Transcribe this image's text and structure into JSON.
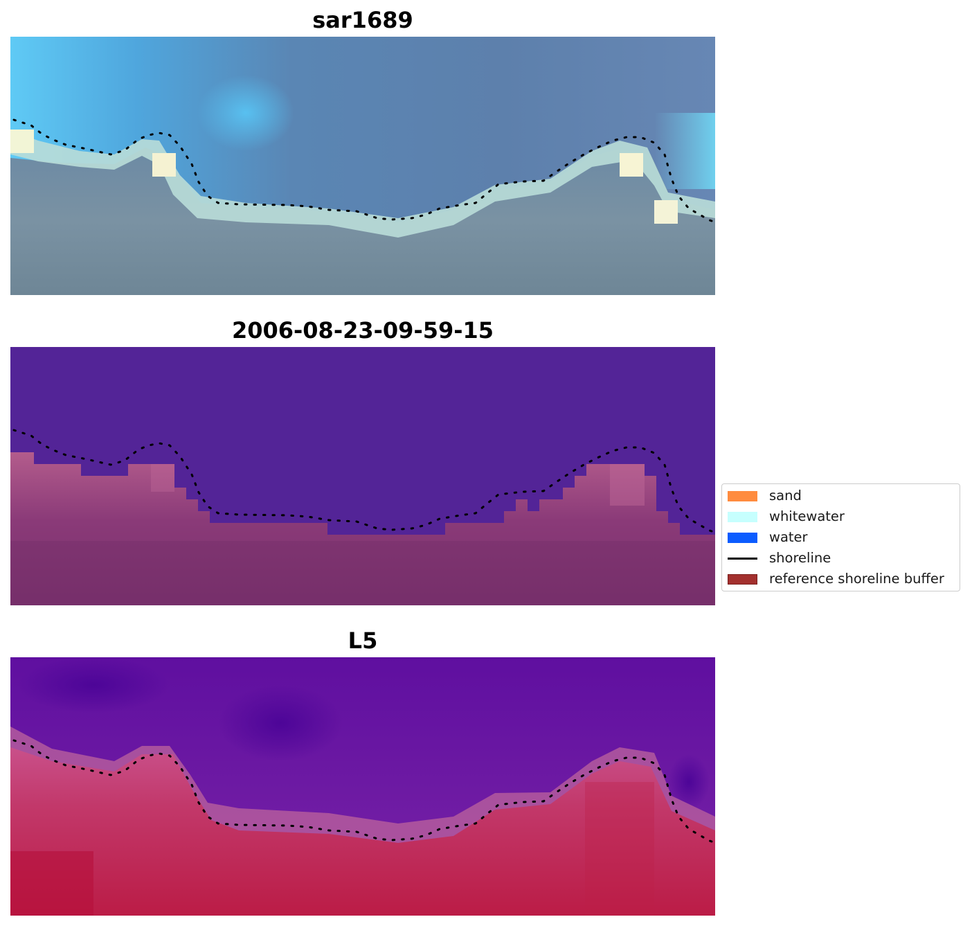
{
  "panels": [
    {
      "title": "sar1689",
      "kind": "rgb"
    },
    {
      "title": "2006-08-23-09-59-15",
      "kind": "classified"
    },
    {
      "title": "L5",
      "kind": "index"
    }
  ],
  "legend": {
    "placement": "right-middle",
    "items": [
      {
        "label": "sand",
        "type": "patch",
        "color": "#ff8c3f"
      },
      {
        "label": "whitewater",
        "type": "patch",
        "color": "#c6fffe"
      },
      {
        "label": "water",
        "type": "patch",
        "color": "#0b5cff"
      },
      {
        "label": "shoreline",
        "type": "line",
        "color": "#000000"
      },
      {
        "label": "reference shoreline buffer",
        "type": "patch",
        "color": "#a3302e",
        "edge": "#7a1f1d"
      }
    ]
  },
  "colors": {
    "rgb_sky": "#5b80aa",
    "rgb_shallow": "#5ac8f5",
    "rgb_land": "#7a8e9e",
    "rgb_wash": "#f5f6d8",
    "class_water": "#532497",
    "class_buffer": "#7f3370",
    "index_water": "#6a1aa0",
    "index_land": "#c01f48"
  }
}
